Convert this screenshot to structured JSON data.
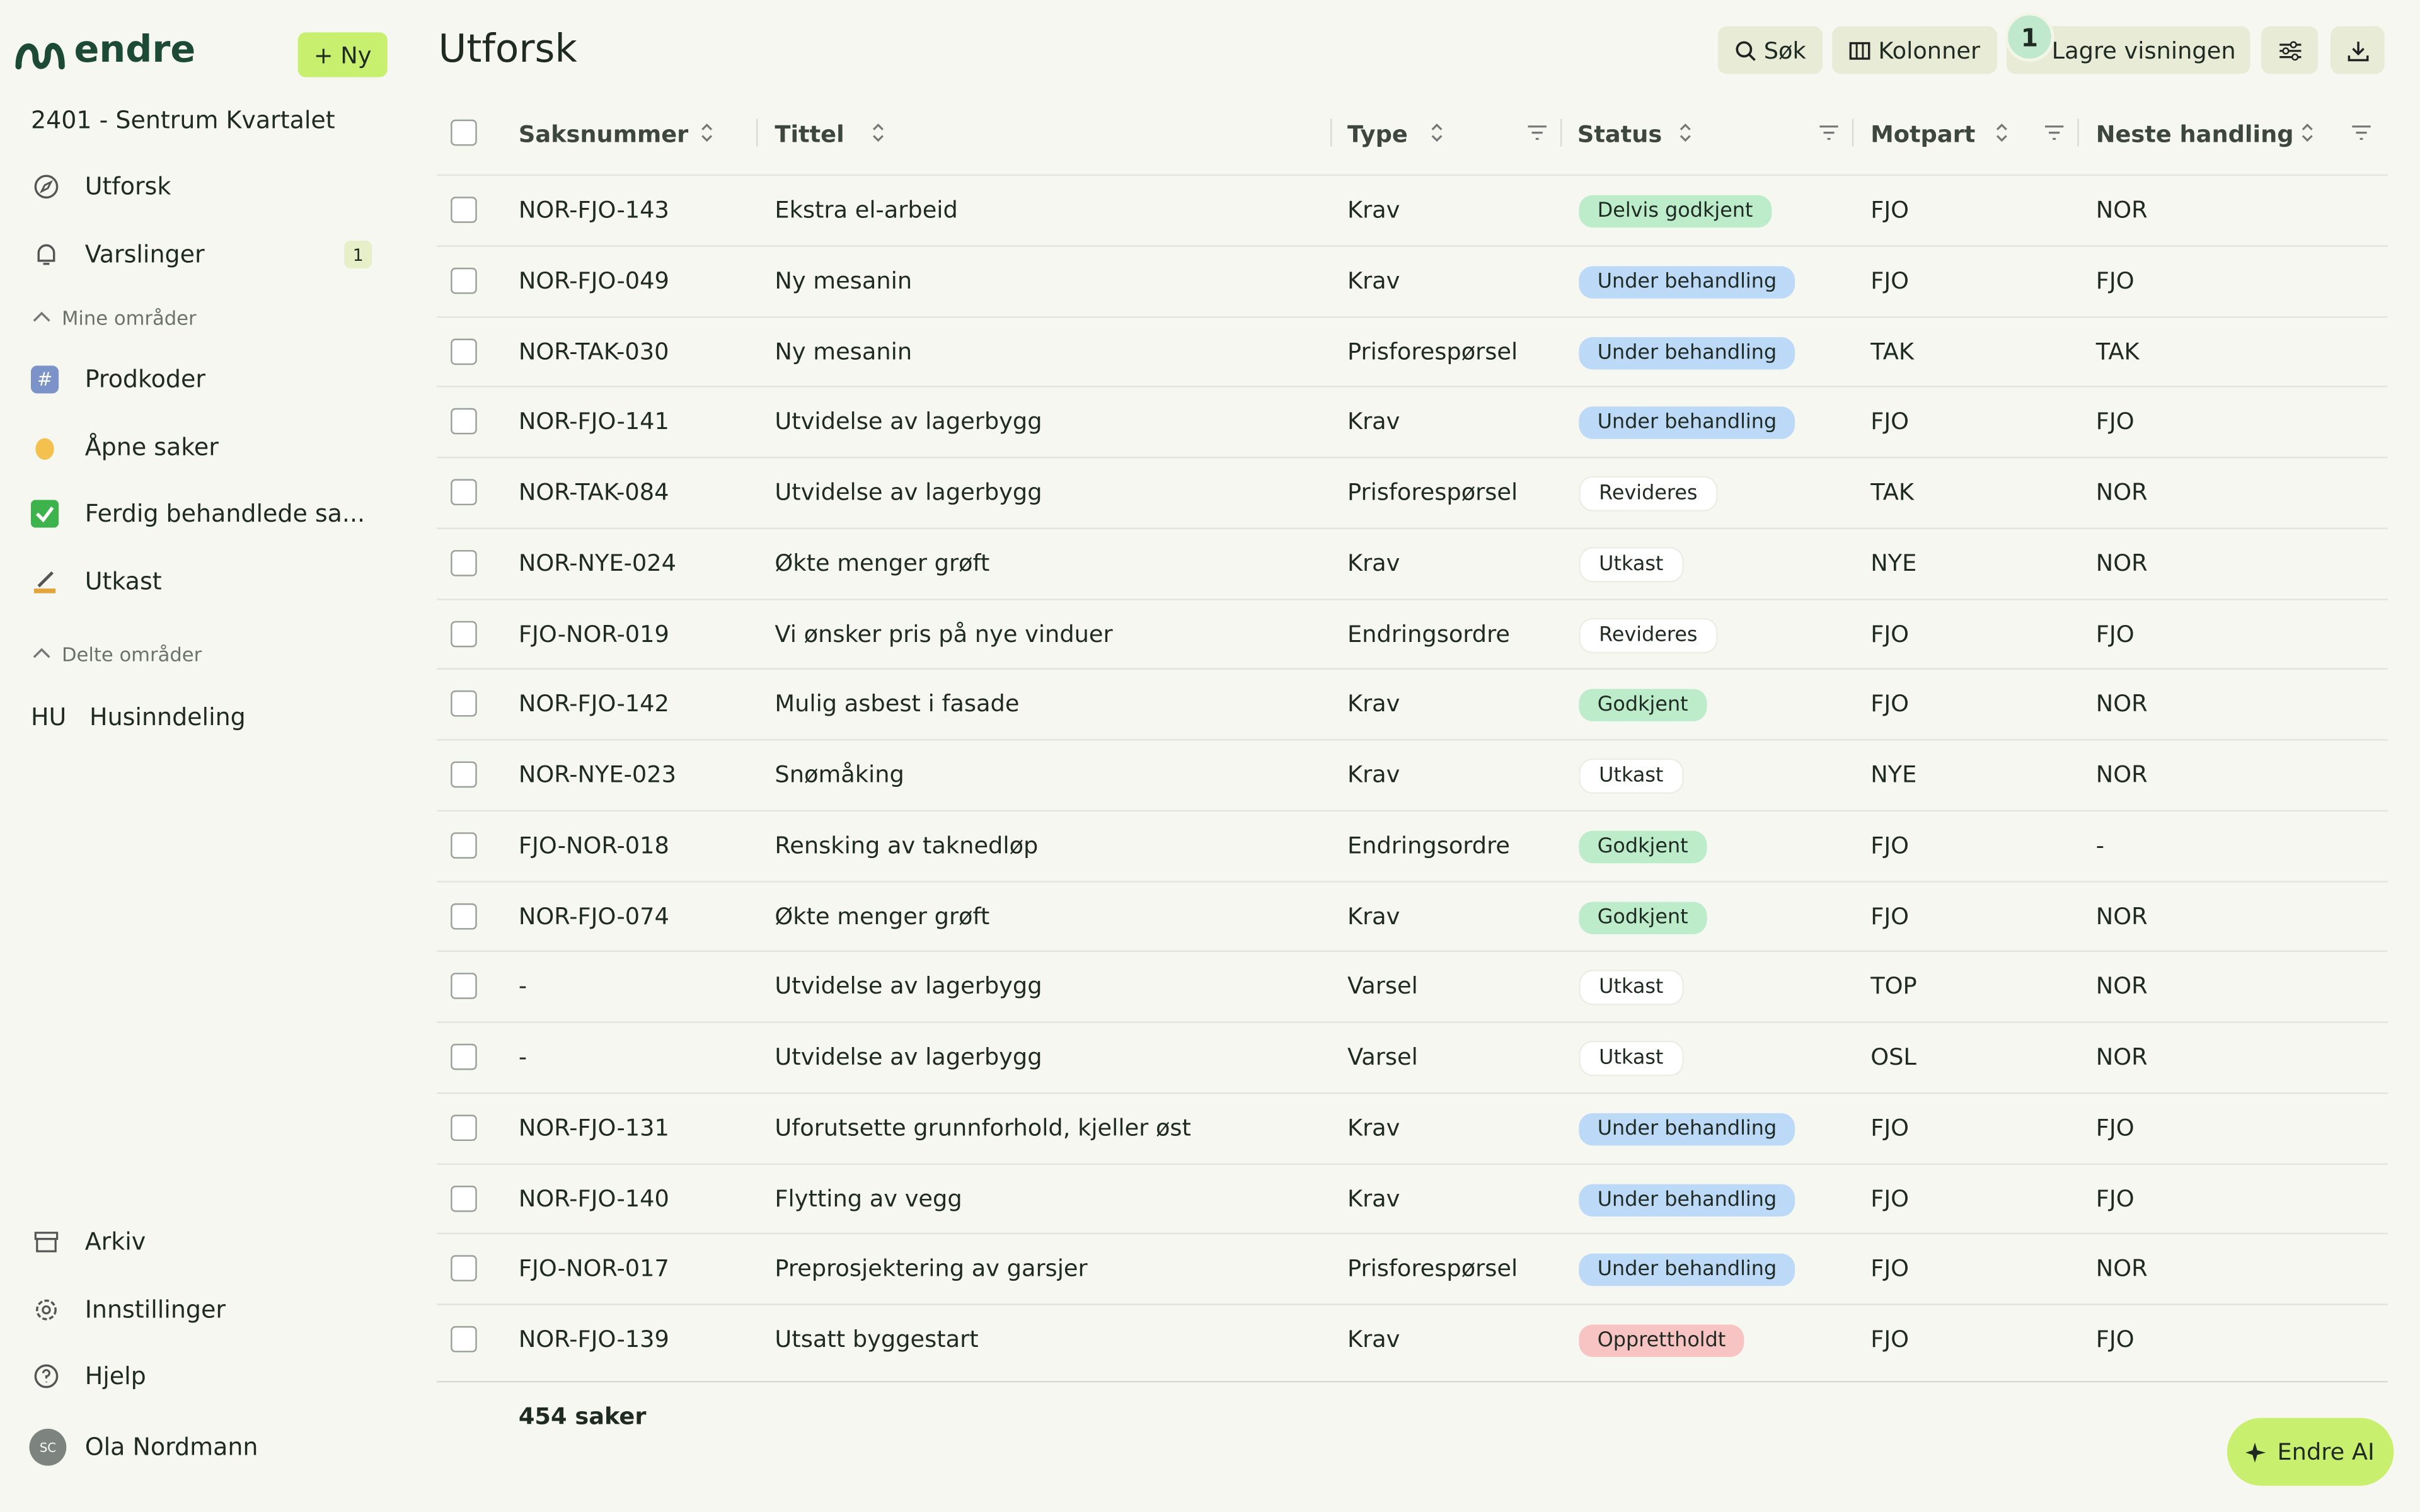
{
  "sidebar": {
    "brand": "endre",
    "new_button": "+ Ny",
    "project": "2401 - Sentrum Kvartalet",
    "items": [
      {
        "label": "Utforsk"
      },
      {
        "label": "Varslinger",
        "badge": "1"
      }
    ],
    "mine_heading": "Mine områder",
    "mine": [
      "Prodkoder",
      "Åpne saker",
      "Ferdig behandlede sa...",
      "Utkast"
    ],
    "delte_heading": "Delte områder",
    "delte": [
      {
        "tag": "HU",
        "label": "Husinndeling"
      }
    ],
    "bottom": [
      "Arkiv",
      "Innstillinger",
      "Hjelp"
    ],
    "user": {
      "initials": "SC",
      "name": "Ola Nordmann"
    }
  },
  "header": {
    "title": "Utforsk",
    "buttons": [
      "Søk",
      "Kolonner",
      "Lagre visningen"
    ],
    "badge": "1"
  },
  "table": {
    "columns": [
      "Saksnummer",
      "Tittel",
      "Type",
      "Status",
      "Motpart",
      "Neste handling"
    ],
    "rows": [
      [
        "NOR-FJO-143",
        "Ekstra el-arbeid",
        "Krav",
        {
          "label": "Delvis godkjent",
          "color": "#bdeccb"
        },
        "FJO",
        "NOR"
      ],
      [
        "NOR-FJO-049",
        "Ny mesanin",
        "Krav",
        {
          "label": "Under behandling",
          "color": "#bcd9f7"
        },
        "FJO",
        "FJO"
      ],
      [
        "NOR-TAK-030",
        "Ny mesanin",
        "Prisforespørsel",
        {
          "label": "Under behandling",
          "color": "#bcd9f7"
        },
        "TAK",
        "TAK"
      ],
      [
        "NOR-FJO-141",
        "Utvidelse av lagerbygg",
        "Krav",
        {
          "label": "Under behandling",
          "color": "#bcd9f7"
        },
        "FJO",
        "FJO"
      ],
      [
        "NOR-TAK-084",
        "Utvidelse av lagerbygg",
        "Prisforespørsel",
        {
          "label": "Revideres",
          "color": "#ffffff"
        },
        "TAK",
        "NOR"
      ],
      [
        "NOR-NYE-024",
        "Økte menger grøft",
        "Krav",
        {
          "label": "Utkast",
          "color": "#ffffff"
        },
        "NYE",
        "NOR"
      ],
      [
        "FJO-NOR-019",
        "Vi ønsker pris på nye vinduer",
        "Endringsordre",
        {
          "label": "Revideres",
          "color": "#ffffff"
        },
        "FJO",
        "FJO"
      ],
      [
        "NOR-FJO-142",
        "Mulig asbest i fasade",
        "Krav",
        {
          "label": "Godkjent",
          "color": "#bdeccb"
        },
        "FJO",
        "NOR"
      ],
      [
        "NOR-NYE-023",
        "Snømåking",
        "Krav",
        {
          "label": "Utkast",
          "color": "#ffffff"
        },
        "NYE",
        "NOR"
      ],
      [
        "FJO-NOR-018",
        "Rensking av taknedløp",
        "Endringsordre",
        {
          "label": "Godkjent",
          "color": "#bdeccb"
        },
        "FJO",
        "-"
      ],
      [
        "NOR-FJO-074",
        "Økte menger grøft",
        "Krav",
        {
          "label": "Godkjent",
          "color": "#bdeccb"
        },
        "FJO",
        "NOR"
      ],
      [
        "-",
        "Utvidelse av lagerbygg",
        "Varsel",
        {
          "label": "Utkast",
          "color": "#ffffff"
        },
        "TOP",
        "NOR"
      ],
      [
        "-",
        "Utvidelse av lagerbygg",
        "Varsel",
        {
          "label": "Utkast",
          "color": "#ffffff"
        },
        "OSL",
        "NOR"
      ],
      [
        "NOR-FJO-131",
        "Uforutsette grunnforhold, kjeller øst",
        "Krav",
        {
          "label": "Under behandling",
          "color": "#bcd9f7"
        },
        "FJO",
        "FJO"
      ],
      [
        "NOR-FJO-140",
        "Flytting av vegg",
        "Krav",
        {
          "label": "Under behandling",
          "color": "#bcd9f7"
        },
        "FJO",
        "FJO"
      ],
      [
        "FJO-NOR-017",
        "Preprosjektering av garsjer",
        "Prisforespørsel",
        {
          "label": "Under behandling",
          "color": "#bcd9f7"
        },
        "FJO",
        "NOR"
      ],
      [
        "NOR-FJO-139",
        "Utsatt byggestart",
        "Krav",
        {
          "label": "Opprettholdt",
          "color": "#f8c3c3"
        },
        "FJO",
        "FJO"
      ]
    ],
    "footer": "454 saker"
  },
  "ai_button": "Endre AI"
}
